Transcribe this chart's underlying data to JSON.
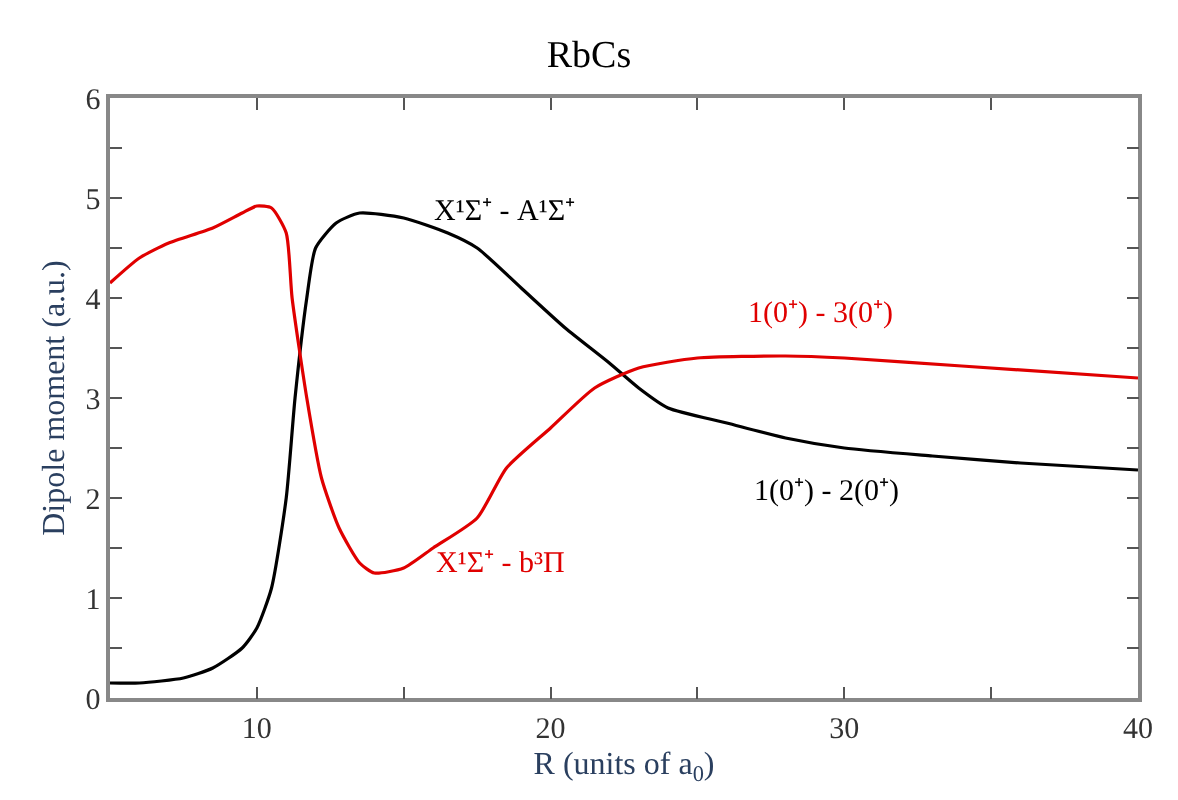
{
  "chart_data": {
    "type": "line",
    "title": "RbCs",
    "xlabel": "R (units of a$_{0}$)",
    "ylabel": "Dipole moment (a.u.)",
    "xlim": [
      5,
      40
    ],
    "ylim": [
      0,
      6
    ],
    "xticks": [
      10,
      {
        "value": 15,
        "label": null
      },
      20,
      {
        "value": 25,
        "label": null
      },
      30,
      {
        "value": 35,
        "label": null
      },
      40
    ],
    "yticks": [
      0,
      {
        "value": 0.5,
        "label": null
      },
      1,
      {
        "value": 1.5,
        "label": null
      },
      2,
      {
        "value": 2.5,
        "label": null
      },
      3,
      {
        "value": 3.5,
        "label": null
      },
      4,
      {
        "value": 4.5,
        "label": null
      },
      5,
      {
        "value": 5.5,
        "label": null
      },
      6
    ],
    "legend": false,
    "marker": "none",
    "line_style": "solid",
    "series": [
      {
        "color": "#000000",
        "x": [
          5,
          6,
          7.5,
          8.5,
          9.5,
          10,
          10.5,
          11,
          11.3,
          11.7,
          12,
          12.7,
          13.5,
          15,
          16.5,
          17.5,
          19,
          20.5,
          22,
          23,
          24,
          26,
          28,
          30,
          33,
          36,
          40
        ],
        "values": [
          0.15,
          0.15,
          0.2,
          0.3,
          0.5,
          0.7,
          1.1,
          2,
          3,
          4,
          4.5,
          4.75,
          4.85,
          4.8,
          4.65,
          4.5,
          4.1,
          3.7,
          3.35,
          3.1,
          2.9,
          2.75,
          2.6,
          2.5,
          2.42,
          2.35,
          2.28
        ]
      },
      {
        "color": "#e00000",
        "x": [
          5,
          6,
          7,
          8.5,
          9.5,
          10,
          10.5,
          11,
          11.2,
          11.7,
          12.2,
          12.8,
          13.5,
          14,
          15,
          16,
          17.5,
          18.5,
          20,
          21.5,
          23,
          25,
          28,
          30,
          34,
          40
        ],
        "values": [
          4.15,
          4.4,
          4.55,
          4.7,
          4.85,
          4.92,
          4.9,
          4.65,
          4.0,
          3.0,
          2.2,
          1.7,
          1.35,
          1.25,
          1.3,
          1.5,
          1.8,
          2.3,
          2.7,
          3.1,
          3.3,
          3.4,
          3.42,
          3.4,
          3.32,
          3.2
        ]
      }
    ],
    "annotations": [
      "X¹Σ⁺ - A¹Σ⁺",
      "1(0⁺) - 3(0⁺)",
      "1(0⁺) - 2(0⁺)",
      "X¹Σ⁺ - b³Π"
    ]
  }
}
